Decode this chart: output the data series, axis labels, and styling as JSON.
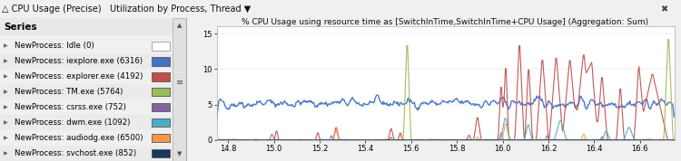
{
  "title": "CPU Usage (Precise)   Utilization by Process, Thread ▼",
  "chart_title": "% CPU Usage using resource time as [SwitchInTime,SwitchInTime+CPU Usage] (Aggregation: Sum)",
  "series": [
    {
      "label": "NewProcess: Idle (0)",
      "color": "#ffffff",
      "edge": "#999999"
    },
    {
      "label": "NewProcess: iexplore.exe (6316)",
      "color": "#4472c4",
      "edge": "#4472c4"
    },
    {
      "label": "NewProcess: explorer.exe (4192)",
      "color": "#c0504d",
      "edge": "#c0504d"
    },
    {
      "label": "NewProcess: TM.exe (5764)",
      "color": "#9bbb59",
      "edge": "#9bbb59"
    },
    {
      "label": "NewProcess: csrss.exe (752)",
      "color": "#8064a2",
      "edge": "#8064a2"
    },
    {
      "label": "NewProcess: dwm.exe (1092)",
      "color": "#4bacc6",
      "edge": "#4bacc6"
    },
    {
      "label": "NewProcess: audiodg.exe (6500)",
      "color": "#f79646",
      "edge": "#f79646"
    },
    {
      "label": "NewProcess: svchost.exe (852)",
      "color": "#17375e",
      "edge": "#17375e"
    }
  ],
  "xmin": 14.75,
  "xmax": 16.75,
  "ymin": 0,
  "ymax": 16,
  "yticks": [
    0,
    5,
    10,
    15
  ],
  "xticks": [
    14.8,
    15.0,
    15.2,
    15.4,
    15.6,
    15.8,
    16.0,
    16.2,
    16.4,
    16.6
  ],
  "toolbar_color": "#ccddef",
  "bg_color": "#f0f0f0",
  "legend_bg": "#f5f5f5",
  "plot_bg": "#ffffff",
  "legend_header": "Series",
  "seed": 42
}
